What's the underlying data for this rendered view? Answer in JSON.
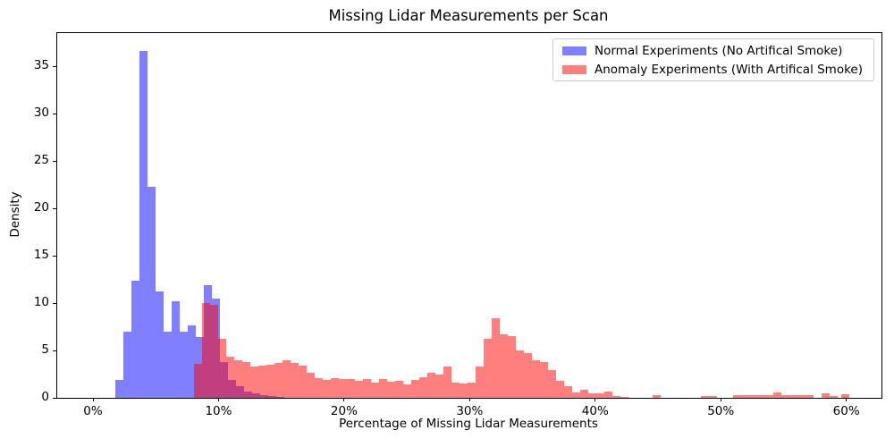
{
  "chart_data": {
    "type": "histogram",
    "title": "Missing Lidar Measurements per Scan",
    "xlabel": "Percentage of Missing Lidar Measurements",
    "ylabel": "Density",
    "grid": false,
    "legend_position": "upper right",
    "xlim_pct": [
      -2.85,
      62.8
    ],
    "ylim": [
      0,
      38.5
    ],
    "x_tick_values": [
      0,
      10,
      20,
      30,
      40,
      50,
      60
    ],
    "x_tick_labels": [
      "0%",
      "10%",
      "20%",
      "30%",
      "40%",
      "50%",
      "60%"
    ],
    "y_tick_values": [
      0,
      5,
      10,
      15,
      20,
      25,
      30,
      35
    ],
    "bin_width_pct": 0.64,
    "series": [
      {
        "name": "Normal Experiments (No Artifical Smoke)",
        "color": "rgba(0,0,255,0.5)",
        "legend_color": "#7f7fff",
        "bars": [
          [
            1.78,
            1.9
          ],
          [
            2.42,
            7.0
          ],
          [
            3.06,
            12.4
          ],
          [
            3.7,
            36.6
          ],
          [
            4.34,
            22.3
          ],
          [
            4.98,
            11.2
          ],
          [
            5.62,
            7.0
          ],
          [
            6.26,
            10.2
          ],
          [
            6.9,
            7.0
          ],
          [
            7.54,
            7.6
          ],
          [
            8.18,
            6.4
          ],
          [
            8.83,
            11.9
          ],
          [
            9.47,
            10.5
          ],
          [
            10.11,
            3.8
          ],
          [
            10.75,
            1.9
          ],
          [
            11.39,
            1.2
          ],
          [
            12.03,
            0.7
          ],
          [
            12.67,
            0.45
          ],
          [
            13.31,
            0.25
          ],
          [
            13.95,
            0.15
          ],
          [
            14.59,
            0.1
          ]
        ]
      },
      {
        "name": "Anomaly Experiments (With Artifical Smoke)",
        "color": "rgba(255,0,0,0.5)",
        "legend_color": "#ff7f7f",
        "bars": [
          [
            8.04,
            3.6
          ],
          [
            8.68,
            10.0
          ],
          [
            9.33,
            9.8
          ],
          [
            9.97,
            6.2
          ],
          [
            10.61,
            4.3
          ],
          [
            11.25,
            4.0
          ],
          [
            11.89,
            3.8
          ],
          [
            12.53,
            3.3
          ],
          [
            13.17,
            3.4
          ],
          [
            13.81,
            3.5
          ],
          [
            14.45,
            3.7
          ],
          [
            15.09,
            4.0
          ],
          [
            15.73,
            3.65
          ],
          [
            16.37,
            3.4
          ],
          [
            17.01,
            2.6
          ],
          [
            17.65,
            2.1
          ],
          [
            18.3,
            1.9
          ],
          [
            18.94,
            2.1
          ],
          [
            19.58,
            2.0
          ],
          [
            20.22,
            2.0
          ],
          [
            20.86,
            1.8
          ],
          [
            21.5,
            2.0
          ],
          [
            22.14,
            1.6
          ],
          [
            22.78,
            2.0
          ],
          [
            23.42,
            1.7
          ],
          [
            24.06,
            1.8
          ],
          [
            24.7,
            1.4
          ],
          [
            25.34,
            1.9
          ],
          [
            25.98,
            2.2
          ],
          [
            26.62,
            2.6
          ],
          [
            27.27,
            2.5
          ],
          [
            27.91,
            3.3
          ],
          [
            28.55,
            1.6
          ],
          [
            29.19,
            1.5
          ],
          [
            29.83,
            1.6
          ],
          [
            30.47,
            3.3
          ],
          [
            31.11,
            6.2
          ],
          [
            31.75,
            8.4
          ],
          [
            32.39,
            6.7
          ],
          [
            33.03,
            6.5
          ],
          [
            33.67,
            5.0
          ],
          [
            34.31,
            4.75
          ],
          [
            34.95,
            4.0
          ],
          [
            35.59,
            3.8
          ],
          [
            36.24,
            2.9
          ],
          [
            36.88,
            1.75
          ],
          [
            37.52,
            1.25
          ],
          [
            38.16,
            0.6
          ],
          [
            38.8,
            0.85
          ],
          [
            39.44,
            0.5
          ],
          [
            40.08,
            0.45
          ],
          [
            40.72,
            0.7
          ],
          [
            41.36,
            0.2
          ],
          [
            42.0,
            0.1
          ],
          [
            44.56,
            0.25
          ],
          [
            48.4,
            0.2
          ],
          [
            49.04,
            0.2
          ],
          [
            50.97,
            0.3
          ],
          [
            51.61,
            0.3
          ],
          [
            52.25,
            0.3
          ],
          [
            52.89,
            0.3
          ],
          [
            53.53,
            0.3
          ],
          [
            54.17,
            0.6
          ],
          [
            54.81,
            0.3
          ],
          [
            55.45,
            0.28
          ],
          [
            56.09,
            0.28
          ],
          [
            56.73,
            0.28
          ],
          [
            58.02,
            0.45
          ],
          [
            58.66,
            0.2
          ],
          [
            59.58,
            0.35
          ]
        ]
      }
    ]
  }
}
